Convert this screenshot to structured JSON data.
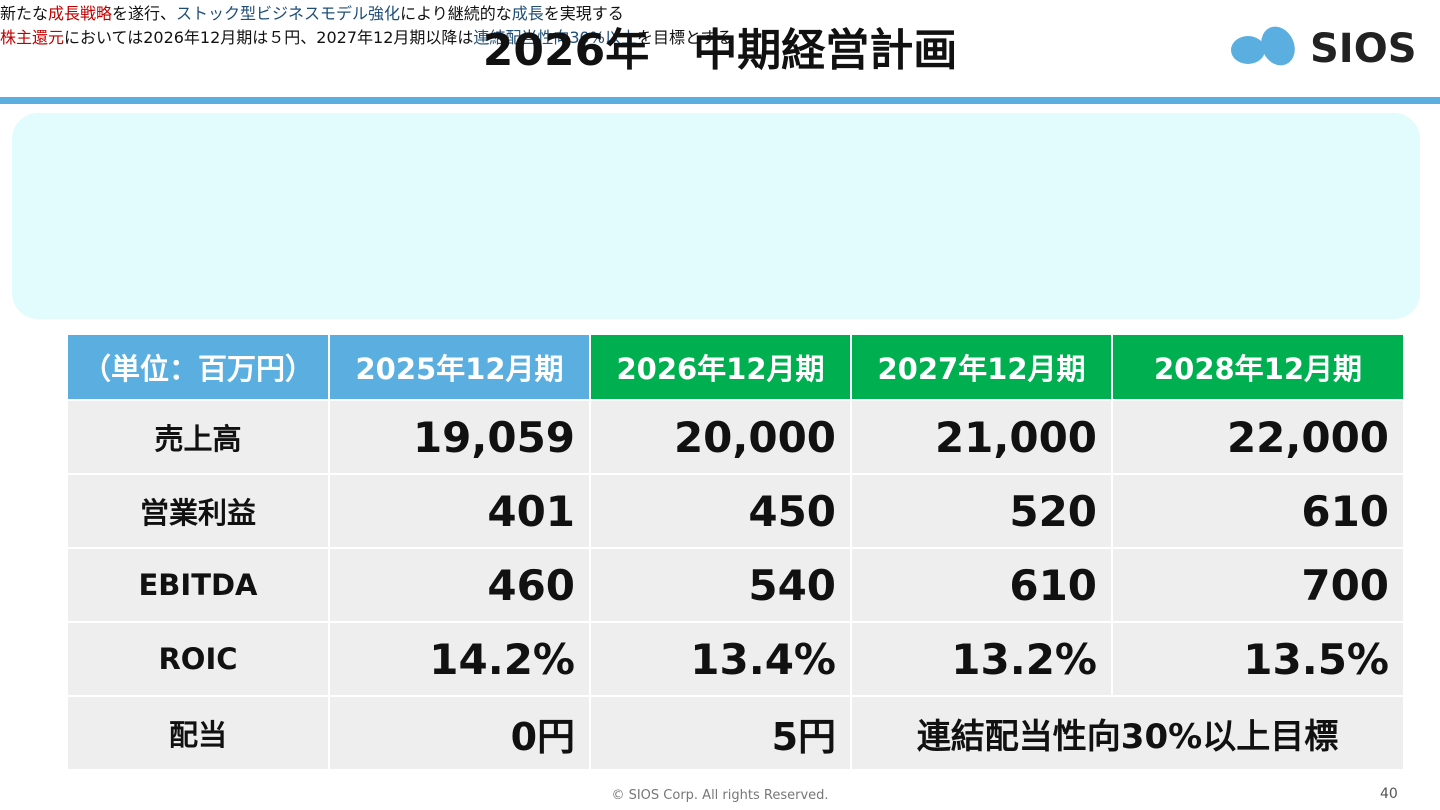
{
  "header": {
    "title": "2026年　中期経営計画",
    "logo": "SIOS"
  },
  "bullets": [
    {
      "segments": [
        {
          "text": "新たな",
          "color": "#111111"
        },
        {
          "text": "成長戦略",
          "color": "#c00000"
        },
        {
          "text": "を遂行、",
          "color": "#111111"
        },
        {
          "text": "ストック型ビジネスモデル強化",
          "color": "#1f4e79"
        },
        {
          "text": "により継続的な",
          "color": "#111111"
        },
        {
          "text": "成長",
          "color": "#1f4e79"
        },
        {
          "text": "を実現する",
          "color": "#111111"
        }
      ]
    },
    {
      "segments": [
        {
          "text": "株主還元",
          "color": "#c00000"
        },
        {
          "text": "においては2026年12月期は５円、2027年12月期以降は",
          "color": "#111111"
        },
        {
          "text": "連結配当性向30%以上",
          "color": "#1f4e79"
        },
        {
          "text": "を目標とする",
          "color": "#111111"
        }
      ]
    }
  ],
  "table": {
    "header": [
      "（単位：百万円）",
      "2025年12月期",
      "2026年12月期",
      "2027年12月期",
      "2028年12月期"
    ],
    "header_colors": [
      "#5aaee0",
      "#5aaee0",
      "#00b050",
      "#00b050",
      "#00b050"
    ],
    "rows": [
      [
        "売上高",
        "19,059",
        "20,000",
        "21,000",
        "22,000"
      ],
      [
        "営業利益",
        "401",
        "450",
        "520",
        "610"
      ],
      [
        "EBITDA",
        "460",
        "540",
        "610",
        "700"
      ],
      [
        "ROIC",
        "14.2%",
        "13.4%",
        "13.2%",
        "13.5%"
      ],
      [
        "配当",
        "0円",
        "5円",
        "連結配当性向30%以上目標"
      ]
    ]
  },
  "footer": {
    "copyright": "© SIOS Corp. All rights Reserved.",
    "page": "40"
  }
}
